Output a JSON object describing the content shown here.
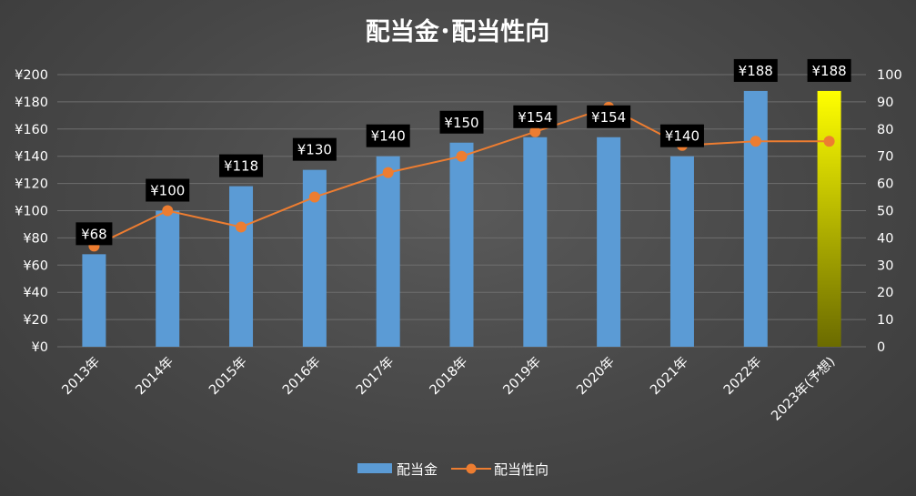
{
  "chart_data": {
    "type": "bar",
    "title": "配当金･配当性向",
    "categories": [
      "2013年",
      "2014年",
      "2015年",
      "2016年",
      "2017年",
      "2018年",
      "2019年",
      "2020年",
      "2021年",
      "2022年",
      "2023年(予想)"
    ],
    "series": [
      {
        "name": "配当金",
        "type": "bar",
        "axis": "left",
        "values": [
          68,
          100,
          118,
          130,
          140,
          150,
          154,
          154,
          140,
          188,
          188
        ],
        "data_labels": [
          "¥68",
          "¥100",
          "¥118",
          "¥130",
          "¥140",
          "¥150",
          "¥154",
          "¥154",
          "¥140",
          "¥188",
          "¥188"
        ],
        "color": "#5b9bd5",
        "highlight_color_top": "#ffff00",
        "highlight_color_bottom": "#6b6b00",
        "highlight_index": 10
      },
      {
        "name": "配当性向",
        "type": "line",
        "axis": "right",
        "values": [
          37,
          50,
          44,
          55,
          64,
          70,
          79,
          88,
          74,
          75.5,
          75.5
        ],
        "color": "#ed7d31"
      }
    ],
    "left_axis": {
      "ylim": [
        0,
        200
      ],
      "ticks": [
        0,
        20,
        40,
        60,
        80,
        100,
        120,
        140,
        160,
        180,
        200
      ],
      "tick_labels": [
        "¥0",
        "¥20",
        "¥40",
        "¥60",
        "¥80",
        "¥100",
        "¥120",
        "¥140",
        "¥160",
        "¥180",
        "¥200"
      ]
    },
    "right_axis": {
      "ylim": [
        0,
        100
      ],
      "ticks": [
        0,
        10,
        20,
        30,
        40,
        50,
        60,
        70,
        80,
        90,
        100
      ],
      "tick_labels": [
        "0",
        "10",
        "20",
        "30",
        "40",
        "50",
        "60",
        "70",
        "80",
        "90",
        "100"
      ]
    },
    "grid": true,
    "legend_position": "bottom",
    "colors": {
      "grid": "#6e6e6e",
      "label_box": "#000000",
      "text": "#ffffff"
    }
  }
}
